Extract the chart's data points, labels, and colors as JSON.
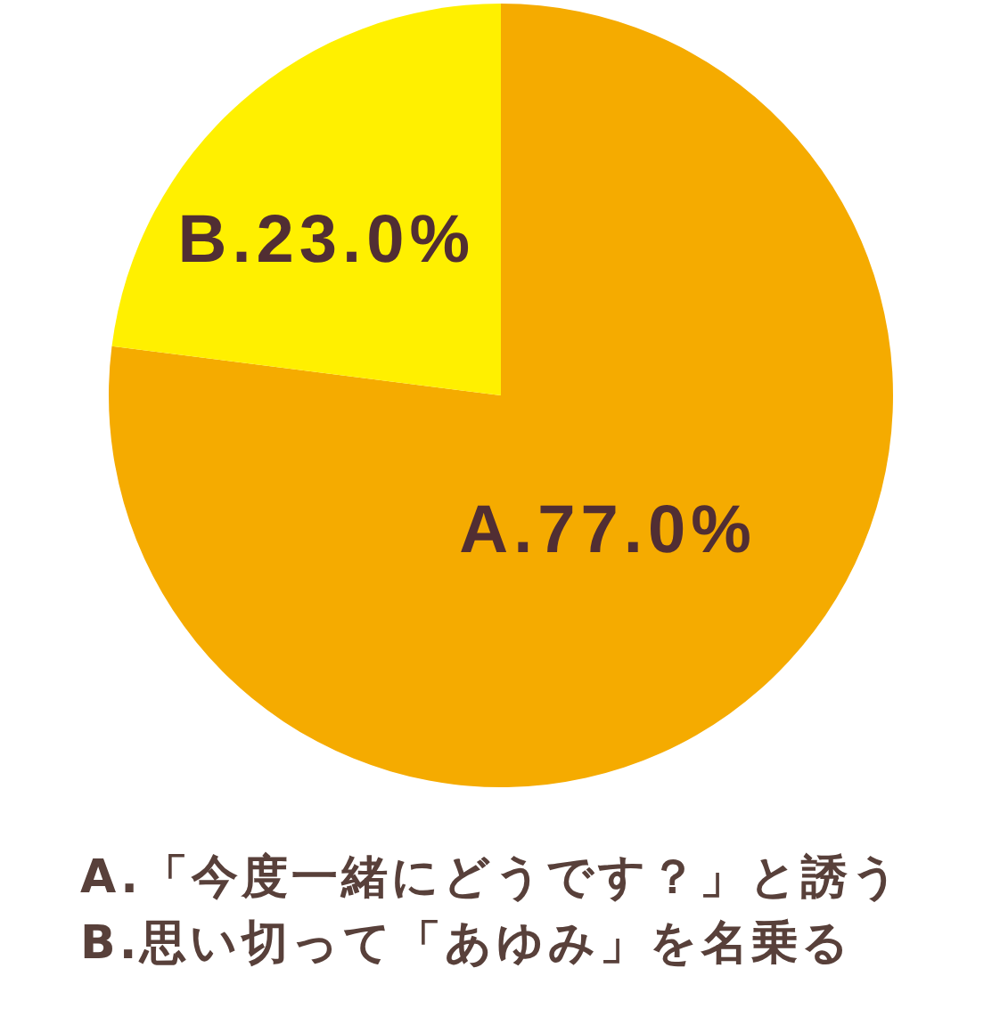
{
  "chart_data": {
    "type": "pie",
    "categories": [
      "A.",
      "B."
    ],
    "values": [
      77.0,
      23.0
    ],
    "colors": [
      "#f5ab00",
      "#fff000"
    ],
    "value_labels": [
      "77.0%",
      "23.0%"
    ],
    "annotations": [
      "A.「今度一緒にどうです？」と誘う",
      "B.思い切って「あゆみ」を名乗る"
    ]
  }
}
